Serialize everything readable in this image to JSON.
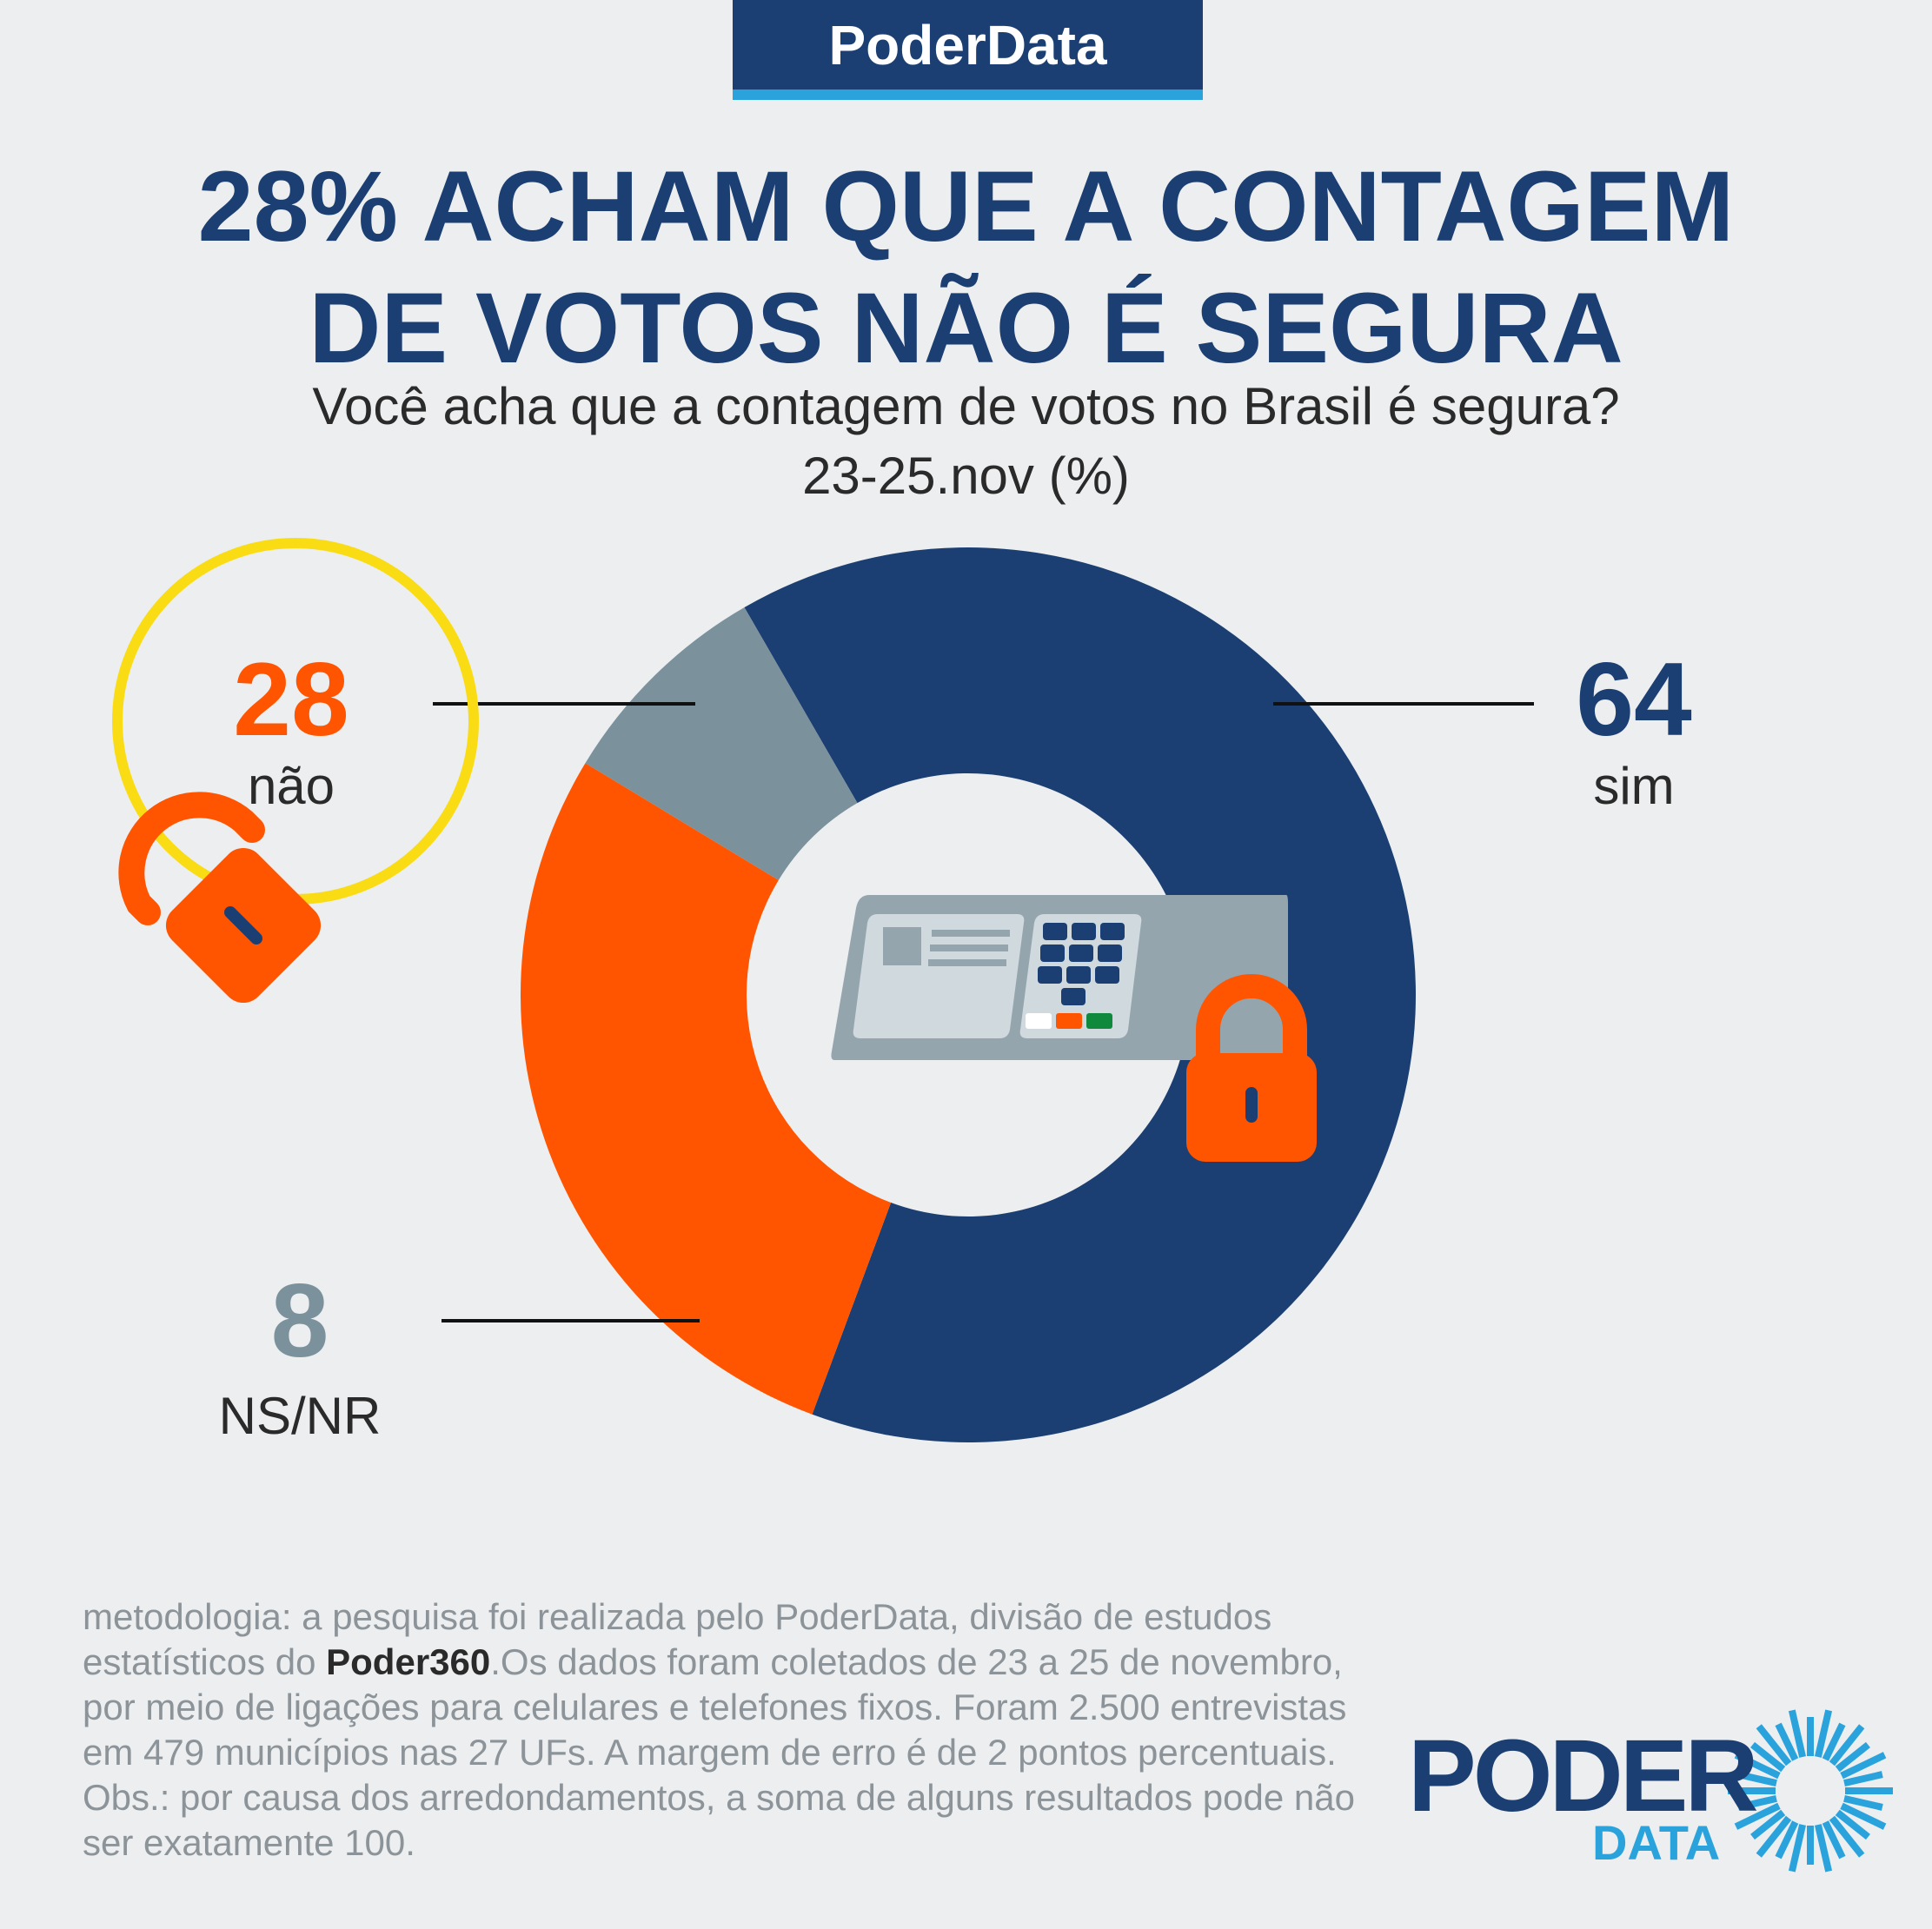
{
  "header": {
    "brand": "PoderData"
  },
  "title_lines": [
    "28% ACHAM QUE A CONTAGEM",
    "DE VOTOS NÃO É SEGURA"
  ],
  "subtitle_lines": [
    "Você acha que a contagem de votos no Brasil é segura?",
    "23-25.nov  (%)"
  ],
  "chart_data": {
    "type": "pie",
    "donut": true,
    "categories": [
      "sim",
      "não",
      "NS/NR"
    ],
    "values": [
      64,
      28,
      8
    ],
    "colors": [
      "#1b3f72",
      "#ff5500",
      "#7b919c"
    ],
    "title": "Você acha que a contagem de votos no Brasil é segura?",
    "subtitle": "23-25.nov  (%)",
    "labels": {
      "sim": {
        "value": "64",
        "name": "sim"
      },
      "nao": {
        "value": "28",
        "name": "não"
      },
      "nsnr": {
        "value": "8",
        "name": "NS/NR"
      }
    }
  },
  "methodology": {
    "before_bold": "metodologia: a pesquisa foi realizada pelo PoderData, divisão de estudos estatísticos do ",
    "bold": "Poder360",
    "after_bold": ".Os dados foram coletados de 23 a 25 de novembro, por meio de ligações para celulares e telefones fixos. Foram 2.500 entrevistas em 479 municípios nas 27 UFs. A margem de erro é de 2 pontos percentuais. Obs.: por causa dos arredondamentos, a soma de alguns resultados pode não ser exatamente 100."
  },
  "logo": {
    "line1": "PODER",
    "line2": "DATA"
  },
  "icons": [
    "open-lock-icon",
    "closed-lock-icon",
    "voting-machine-icon",
    "sunburst-logo-icon"
  ]
}
